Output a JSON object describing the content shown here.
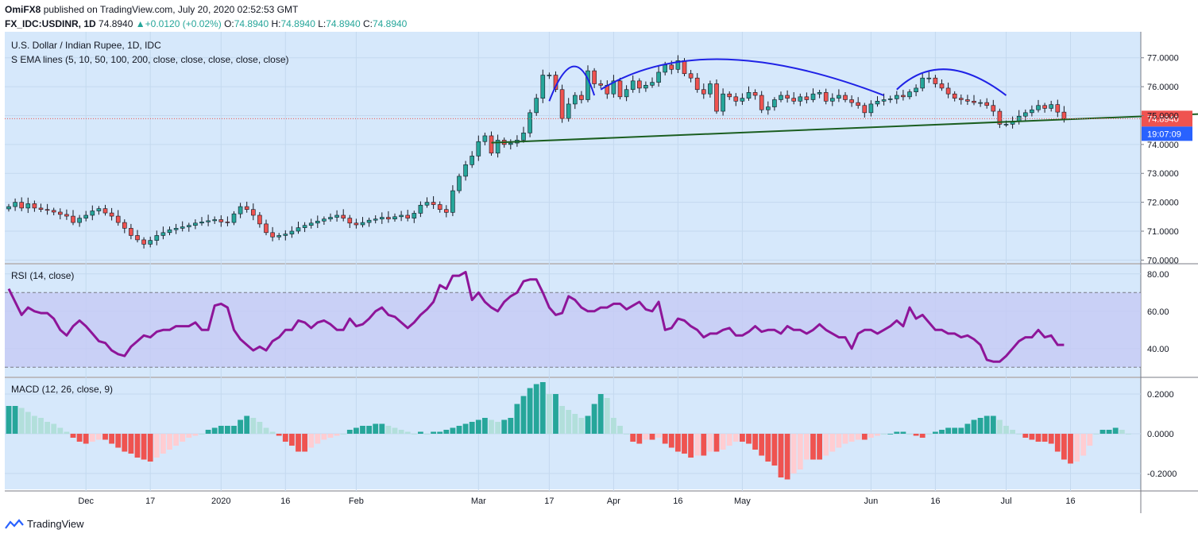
{
  "header": {
    "author": "OmiFX8",
    "published": "published on TradingView.com, July 20, 2020 02:52:53 GMT",
    "symbol": "FX_IDC:USDINR, 1D",
    "last": "74.8940",
    "change": "+0.0120 (+0.02%)",
    "ohlc": {
      "o": "74.8940",
      "h": "74.8940",
      "l": "74.8940",
      "c": "74.8940"
    },
    "ohlc_labels": {
      "o": "O:",
      "h": "H:",
      "l": "L:",
      "c": "C:"
    }
  },
  "main_pane": {
    "title": "U.S. Dollar / Indian Rupee, 1D, IDC",
    "indicator": "S EMA lines (5, 10, 50, 100, 200, close, close, close, close, close)",
    "price_label": "74.8940",
    "countdown": "19:07:09"
  },
  "rsi_pane": {
    "title": "RSI (14, close)"
  },
  "macd_pane": {
    "title": "MACD (12, 26, close, 9)"
  },
  "footer": {
    "brand": "TradingView"
  },
  "colors": {
    "bull": "#26a69a",
    "bear": "#ef5350",
    "bull_light": "#b2dfdb",
    "bear_light": "#ffcdd2",
    "bg": "#d6e8fb",
    "rsi_line": "#8e1599",
    "rsi_band": "#c5c9f5",
    "pattern_arc": "#1f22e6",
    "trendline": "#1b5e20",
    "price_tag": "#2962ff"
  },
  "chart_data": [
    {
      "type": "candlestick",
      "title": "U.S. Dollar / Indian Rupee, 1D, IDC",
      "x_tick_labels": [
        "Dec",
        "17",
        "2020",
        "16",
        "Feb",
        "Mar",
        "17",
        "Apr",
        "16",
        "May",
        "Jun",
        "16",
        "Jul",
        "16"
      ],
      "y_tick_labels": [
        "77.0000",
        "76.0000",
        "75.0000",
        "74.0000",
        "73.0000",
        "72.0000",
        "71.0000",
        "70.0000"
      ],
      "ylim": [
        69.9,
        77.9
      ],
      "close": [
        71.85,
        72.0,
        71.8,
        71.95,
        71.8,
        71.75,
        71.72,
        71.66,
        71.58,
        71.52,
        71.3,
        71.45,
        71.55,
        71.7,
        71.78,
        71.63,
        71.52,
        71.3,
        71.1,
        70.85,
        70.7,
        70.55,
        70.68,
        70.85,
        70.95,
        71.05,
        71.1,
        71.15,
        71.2,
        71.28,
        71.32,
        71.36,
        71.4,
        71.32,
        71.3,
        71.6,
        71.85,
        71.75,
        71.55,
        71.25,
        70.95,
        70.8,
        70.85,
        70.9,
        71.0,
        71.12,
        71.2,
        71.28,
        71.35,
        71.42,
        71.48,
        71.55,
        71.45,
        71.28,
        71.22,
        71.3,
        71.38,
        71.42,
        71.48,
        71.42,
        71.5,
        71.55,
        71.45,
        71.62,
        71.9,
        72.0,
        71.92,
        71.75,
        71.65,
        72.4,
        72.9,
        73.3,
        73.6,
        74.1,
        74.3,
        73.7,
        74.15,
        74.0,
        74.05,
        74.15,
        74.4,
        75.1,
        75.6,
        76.4,
        76.4,
        75.9,
        74.9,
        75.4,
        75.7,
        75.55,
        76.55,
        76.1,
        76.05,
        75.75,
        76.2,
        75.65,
        75.9,
        76.2,
        75.95,
        76.05,
        76.15,
        76.5,
        76.75,
        76.6,
        76.9,
        76.45,
        76.3,
        75.9,
        75.75,
        76.1,
        75.15,
        75.75,
        75.65,
        75.5,
        75.6,
        75.8,
        75.7,
        75.2,
        75.3,
        75.55,
        75.7,
        75.6,
        75.5,
        75.65,
        75.55,
        75.75,
        75.8,
        75.5,
        75.6,
        75.7,
        75.55,
        75.45,
        75.35,
        75.1,
        75.4,
        75.5,
        75.55,
        75.58,
        75.7,
        75.65,
        75.82,
        75.95,
        76.3,
        76.3,
        76.1,
        75.95,
        75.75,
        75.6,
        75.55,
        75.5,
        75.45,
        75.45,
        75.35,
        75.15,
        74.7,
        74.7,
        74.8,
        74.98,
        75.1,
        75.2,
        75.35,
        75.25,
        75.38,
        75.12,
        74.89
      ],
      "trendline": {
        "points": [
          [
            75,
            74.06
          ],
          [
            221,
            75.38
          ]
        ]
      },
      "pattern_arcs": [
        "left shoulder",
        "head",
        "right shoulder"
      ],
      "last_price": 74.894
    },
    {
      "type": "line",
      "title": "RSI (14, close)",
      "y_tick_labels": [
        "80.00",
        "60.00",
        "40.00"
      ],
      "ylim": [
        25,
        85
      ],
      "band": [
        30,
        70
      ],
      "series": [
        {
          "values": [
            72,
            65,
            58,
            62,
            60,
            59,
            59,
            56,
            50,
            47,
            52,
            55,
            52,
            48,
            44,
            43,
            39,
            37,
            36,
            41,
            44,
            47,
            46,
            49,
            50,
            50,
            52,
            52,
            52,
            54,
            50,
            50,
            63,
            64,
            62,
            50,
            45,
            42,
            39,
            41,
            39,
            44,
            46,
            50,
            50,
            55,
            54,
            51,
            54,
            55,
            53,
            50,
            50,
            56,
            52,
            53,
            56,
            60,
            62,
            58,
            57,
            54,
            51,
            54,
            58,
            61,
            65,
            74,
            72,
            79,
            79,
            81,
            66,
            70,
            65,
            62,
            60,
            65,
            68,
            70,
            76,
            77,
            77,
            70,
            62,
            58,
            59,
            68,
            66,
            62,
            60,
            60,
            62,
            62,
            64,
            64,
            61,
            63,
            65,
            61,
            60,
            65,
            50,
            51,
            56,
            55,
            52,
            50,
            46,
            48,
            48,
            50,
            51,
            47,
            47,
            49,
            52,
            49,
            50,
            50,
            48,
            52,
            50,
            50,
            48,
            50,
            53,
            50,
            48,
            46,
            46,
            40,
            48,
            50,
            50,
            48,
            50,
            52,
            55,
            52,
            62,
            56,
            58,
            54,
            50,
            50,
            48,
            48,
            46,
            47,
            45,
            42,
            34,
            33,
            33,
            36,
            40,
            44,
            46,
            46,
            50,
            46,
            47,
            42,
            42
          ]
        }
      ]
    },
    {
      "type": "bar",
      "title": "MACD (12, 26, close, 9)",
      "y_tick_labels": [
        "0.2000",
        "0.0000",
        "-0.2000"
      ],
      "ylim": [
        -0.28,
        0.28
      ],
      "series": [
        {
          "name": "histogram",
          "values": [
            0.14,
            0.14,
            0.13,
            0.11,
            0.09,
            0.08,
            0.06,
            0.05,
            0.03,
            0.01,
            -0.02,
            -0.04,
            -0.05,
            -0.04,
            -0.03,
            -0.03,
            -0.05,
            -0.07,
            -0.09,
            -0.1,
            -0.12,
            -0.13,
            -0.14,
            -0.12,
            -0.1,
            -0.08,
            -0.06,
            -0.04,
            -0.02,
            -0.01,
            0.0,
            0.02,
            0.03,
            0.04,
            0.04,
            0.04,
            0.07,
            0.09,
            0.08,
            0.06,
            0.03,
            0.01,
            -0.01,
            -0.04,
            -0.06,
            -0.09,
            -0.09,
            -0.07,
            -0.05,
            -0.03,
            -0.02,
            -0.01,
            0.0,
            0.02,
            0.03,
            0.04,
            0.04,
            0.05,
            0.05,
            0.04,
            0.03,
            0.02,
            0.01,
            0.0,
            0.01,
            0.0,
            0.01,
            0.01,
            0.02,
            0.03,
            0.04,
            0.05,
            0.06,
            0.07,
            0.08,
            0.07,
            0.06,
            0.07,
            0.08,
            0.15,
            0.19,
            0.23,
            0.25,
            0.26,
            0.2,
            0.2,
            0.14,
            0.12,
            0.1,
            0.08,
            0.09,
            0.15,
            0.2,
            0.18,
            0.08,
            0.04,
            0.0,
            -0.04,
            -0.05,
            -0.03,
            -0.03,
            -0.02,
            -0.05,
            -0.07,
            -0.09,
            -0.1,
            -0.12,
            -0.11,
            -0.11,
            -0.09,
            -0.09,
            -0.08,
            -0.06,
            -0.04,
            -0.04,
            -0.05,
            -0.08,
            -0.11,
            -0.14,
            -0.16,
            -0.22,
            -0.23,
            -0.2,
            -0.18,
            -0.13,
            -0.13,
            -0.13,
            -0.11,
            -0.09,
            -0.07,
            -0.05,
            -0.04,
            -0.03,
            -0.03,
            -0.02,
            -0.01,
            0.0,
            0.0,
            0.01,
            0.01,
            0.0,
            -0.01,
            -0.02,
            0.0,
            0.01,
            0.02,
            0.03,
            0.03,
            0.03,
            0.05,
            0.07,
            0.08,
            0.09,
            0.09,
            0.07,
            0.04,
            0.02,
            0.0,
            -0.02,
            -0.03,
            -0.04,
            -0.04,
            -0.05,
            -0.09,
            -0.13,
            -0.15,
            -0.14,
            -0.11,
            -0.06,
            0.0,
            0.02,
            0.02,
            0.03,
            0.02,
            0.0
          ]
        }
      ]
    }
  ]
}
